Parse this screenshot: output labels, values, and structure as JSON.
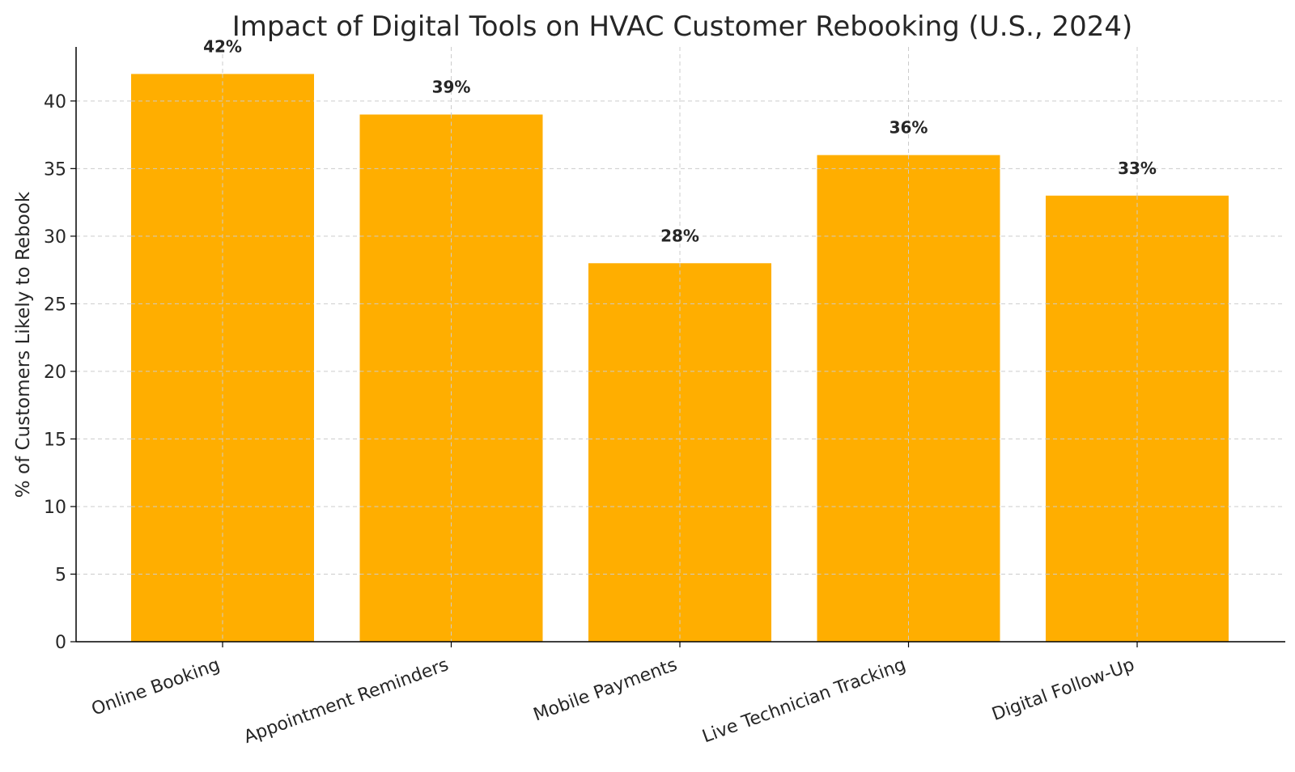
{
  "chart_data": {
    "type": "bar",
    "title": "Impact of Digital Tools on HVAC Customer Rebooking (U.S., 2024)",
    "xlabel": "",
    "ylabel": "% of Customers Likely to Rebook",
    "categories": [
      "Online Booking",
      "Appointment Reminders",
      "Mobile Payments",
      "Live Technician Tracking",
      "Digital Follow-Up"
    ],
    "values": [
      42,
      39,
      28,
      36,
      33
    ],
    "data_labels": [
      "42%",
      "39%",
      "28%",
      "36%",
      "33%"
    ],
    "ylim": [
      0,
      44
    ],
    "yticks": [
      0,
      5,
      10,
      15,
      20,
      25,
      30,
      35,
      40
    ],
    "grid": true,
    "bar_color": "#FFAE00"
  }
}
